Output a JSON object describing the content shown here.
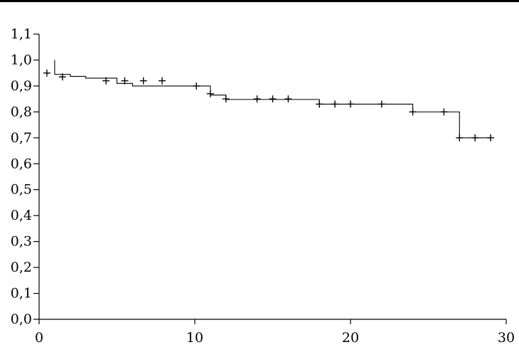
{
  "chart_data": {
    "type": "line",
    "title": "",
    "xlabel": "",
    "ylabel": "",
    "xlim": [
      0,
      30
    ],
    "ylim": [
      0.0,
      1.1
    ],
    "grid": false,
    "x_ticks": [
      "0",
      "10",
      "20",
      "30"
    ],
    "x_tick_values": [
      0,
      10,
      20,
      30
    ],
    "y_ticks": [
      "0,0",
      "0,1",
      "0,2",
      "0,3",
      "0,4",
      "0,5",
      "0,6",
      "0,7",
      "0,8",
      "0,9",
      "1,0",
      "1,1"
    ],
    "y_tick_values": [
      0.0,
      0.1,
      0.2,
      0.3,
      0.4,
      0.5,
      0.6,
      0.7,
      0.8,
      0.9,
      1.0,
      1.1
    ],
    "series": [
      {
        "style": "step",
        "x": [
          1.0,
          1.0,
          2.0,
          3.0,
          5.0,
          6.0,
          11.0,
          12.0,
          18.0,
          24.0,
          27.0,
          29.0
        ],
        "y": [
          1.0,
          0.945,
          0.937,
          0.93,
          0.91,
          0.9,
          0.865,
          0.848,
          0.83,
          0.8,
          0.7,
          0.7
        ],
        "start": [
          1.0,
          1.0
        ]
      }
    ],
    "censored_marks": {
      "x": [
        0.5,
        1.5,
        4.3,
        5.5,
        6.7,
        7.9,
        10.1,
        11.0,
        12.0,
        14.0,
        15.0,
        16.0,
        18.0,
        19.0,
        20.0,
        22.0,
        24.0,
        26.0,
        27.0,
        28.0,
        29.0
      ],
      "y": [
        0.95,
        0.935,
        0.92,
        0.92,
        0.92,
        0.92,
        0.9,
        0.87,
        0.85,
        0.85,
        0.85,
        0.85,
        0.83,
        0.83,
        0.83,
        0.83,
        0.8,
        0.8,
        0.7,
        0.7,
        0.7
      ]
    }
  }
}
